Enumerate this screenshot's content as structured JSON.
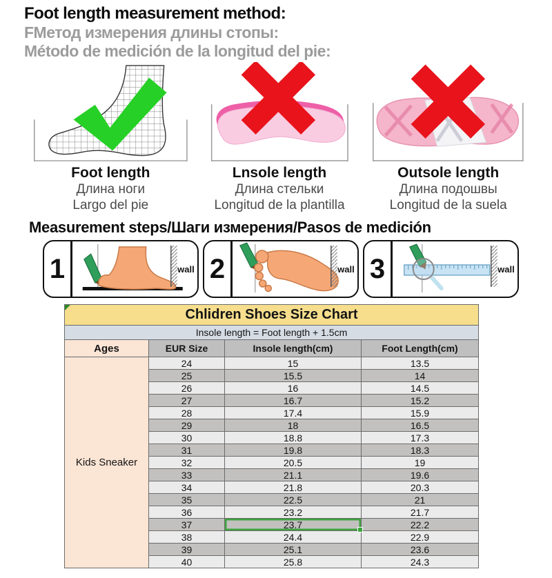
{
  "header": {
    "line_en": "Foot length measurement method:",
    "line_ru": "FМетод измерения длины стопы:",
    "line_es": "Método de medición de la longitud del pie:"
  },
  "methods": [
    {
      "id": "foot-length",
      "verdict": "correct",
      "labels": [
        "Foot length",
        "Длина ноги",
        "Largo del pie"
      ]
    },
    {
      "id": "insole-length",
      "verdict": "wrong",
      "labels": [
        "Lnsole length",
        "Длина стельки",
        "Longitud de la plantilla"
      ]
    },
    {
      "id": "outsole-length",
      "verdict": "wrong",
      "labels": [
        "Outsole length",
        "Длина подошвы",
        "Longitud de la suela"
      ]
    }
  ],
  "steps_heading": "Measurement steps/Шаги измерения/Pasos de medición",
  "steps": [
    {
      "number": "1",
      "wall_label": "wall"
    },
    {
      "number": "2",
      "wall_label": "wall"
    },
    {
      "number": "3",
      "wall_label": "wall"
    }
  ],
  "size_chart": {
    "title": "Chlidren Shoes Size Chart",
    "formula": "Insole length = Foot length + 1.5cm",
    "columns": [
      "Ages",
      "EUR Size",
      "Insole length(cm)",
      "Foot Length(cm)"
    ],
    "ages_label": "Kids Sneaker",
    "highlighted_size": "37",
    "rows": [
      {
        "eur": "24",
        "insole": "15",
        "foot": "13.5"
      },
      {
        "eur": "25",
        "insole": "15.5",
        "foot": "14"
      },
      {
        "eur": "26",
        "insole": "16",
        "foot": "14.5"
      },
      {
        "eur": "27",
        "insole": "16.7",
        "foot": "15.2"
      },
      {
        "eur": "28",
        "insole": "17.4",
        "foot": "15.9"
      },
      {
        "eur": "29",
        "insole": "18",
        "foot": "16.5"
      },
      {
        "eur": "30",
        "insole": "18.8",
        "foot": "17.3"
      },
      {
        "eur": "31",
        "insole": "19.8",
        "foot": "18.3"
      },
      {
        "eur": "32",
        "insole": "20.5",
        "foot": "19"
      },
      {
        "eur": "33",
        "insole": "21.1",
        "foot": "19.6"
      },
      {
        "eur": "34",
        "insole": "21.8",
        "foot": "20.3"
      },
      {
        "eur": "35",
        "insole": "22.5",
        "foot": "21"
      },
      {
        "eur": "36",
        "insole": "23.2",
        "foot": "21.7"
      },
      {
        "eur": "37",
        "insole": "23.7",
        "foot": "22.2"
      },
      {
        "eur": "38",
        "insole": "24.4",
        "foot": "22.9"
      },
      {
        "eur": "39",
        "insole": "25.1",
        "foot": "23.6"
      },
      {
        "eur": "40",
        "insole": "25.8",
        "foot": "24.3"
      }
    ]
  },
  "colors": {
    "check_green": "#26D026",
    "cross_red": "#E8131B",
    "table_title_bg": "#F6DE8D",
    "formula_bg": "#D6DCE4",
    "header_bg": "#BFBFBF",
    "ages_bg": "#FBE5D5",
    "row_light": "#EBEBEB",
    "row_dark": "#C2C1BF",
    "selection_green": "#3DA43D"
  }
}
